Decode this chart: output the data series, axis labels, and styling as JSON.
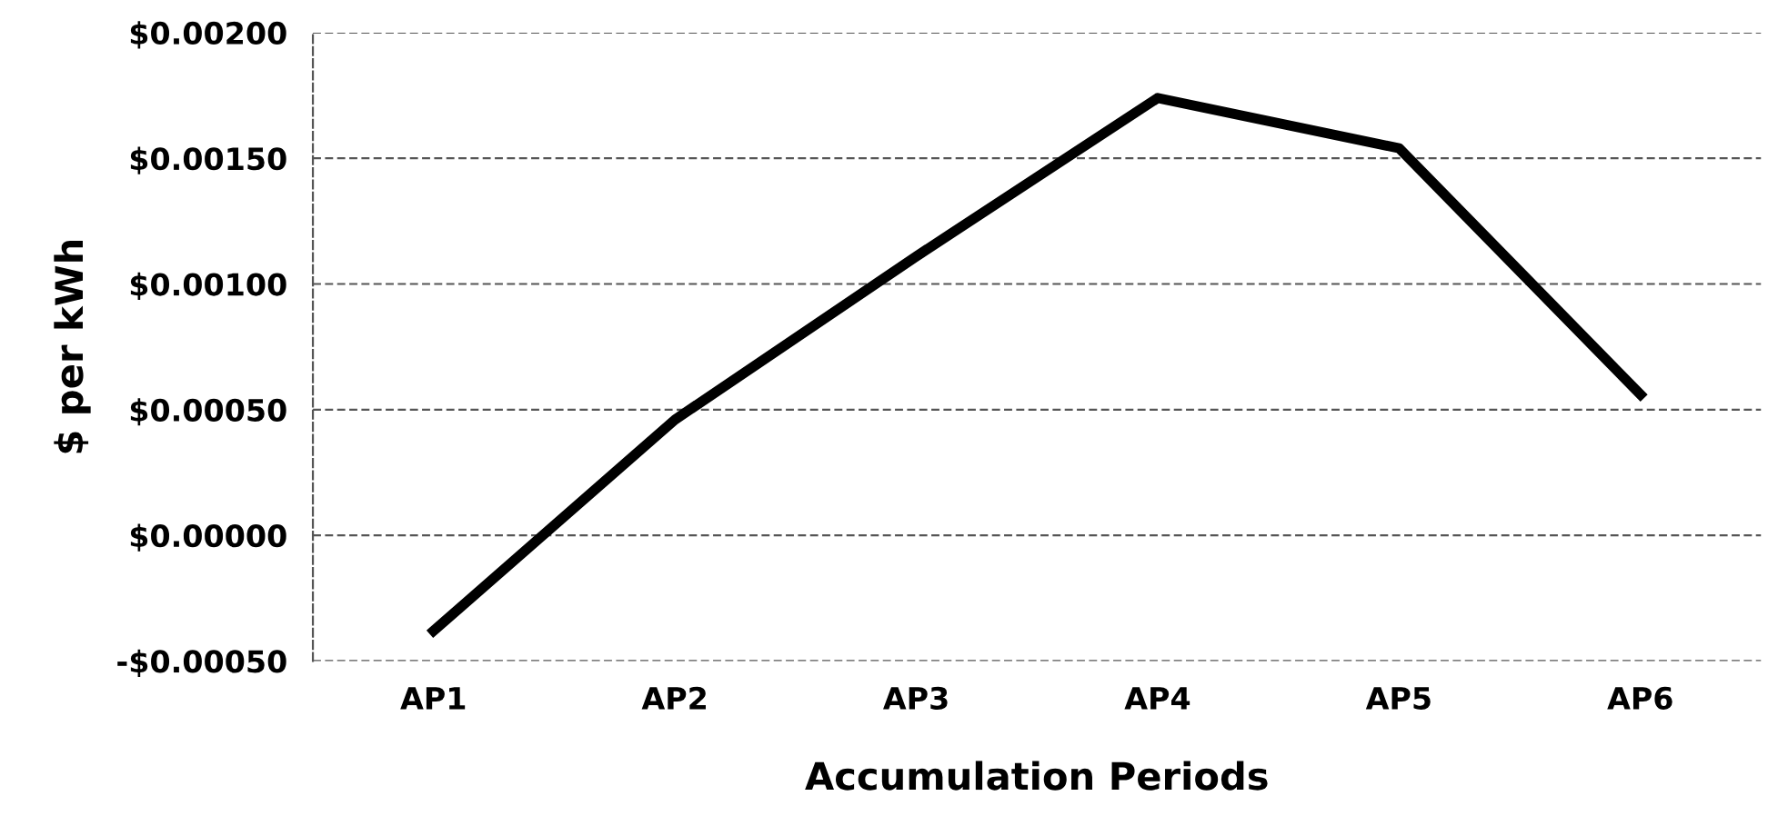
{
  "chart_data": {
    "type": "line",
    "xlabel": "Accumulation Periods",
    "ylabel": "$ per kWh",
    "categories": [
      "AP1",
      "AP2",
      "AP3",
      "AP4",
      "AP5",
      "AP6"
    ],
    "series": [
      {
        "color": "#000000",
        "values": [
          -0.00038,
          0.00046,
          0.00111,
          0.00174,
          0.00154,
          0.00056
        ]
      }
    ],
    "ylim": [
      -0.0005,
      0.002
    ],
    "yticks": [
      {
        "value": -0.0005,
        "label": "-$0.00050"
      },
      {
        "value": 0,
        "label": "$0.00000"
      },
      {
        "value": 0.0005,
        "label": "$0.00050"
      },
      {
        "value": 0.001,
        "label": "$0.00100"
      },
      {
        "value": 0.0015,
        "label": "$0.00150"
      },
      {
        "value": 0.002,
        "label": "$0.00200"
      }
    ],
    "grid": "y",
    "line_style": "solid",
    "marker": "none"
  }
}
